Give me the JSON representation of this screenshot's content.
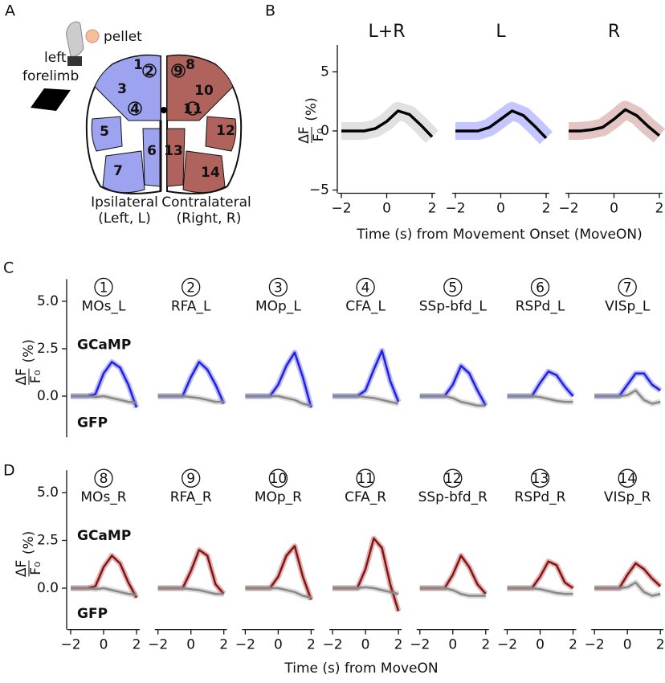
{
  "panel_labels": [
    "A",
    "B",
    "C",
    "D"
  ],
  "diagram": {
    "pellet": "pellet",
    "limb": [
      "left",
      "forelimb"
    ],
    "ipsi": [
      "Ipsilateral",
      "(Left, L)"
    ],
    "contra": [
      "Contralateral",
      "(Right, R)"
    ],
    "regions": [
      "1",
      "2",
      "3",
      "4",
      "5",
      "6",
      "7",
      "8",
      "9",
      "10",
      "11",
      "12",
      "13",
      "14"
    ]
  },
  "labels": {
    "b_xlabel": "Time (s) from Movement Onset (MoveON)",
    "d_xlabel": "Time (s) from MoveON",
    "ylabel_num": "ΔF",
    "ylabel_den": "F₀",
    "ylabel_unit": "(%)"
  },
  "chart_data": [
    {
      "type": "line",
      "title": "L+R",
      "x": [
        -2,
        -1.5,
        -1,
        -0.5,
        0,
        0.5,
        1,
        1.5,
        2
      ],
      "values": [
        0,
        0,
        0,
        0.2,
        0.8,
        1.7,
        1.4,
        0.5,
        -0.5
      ],
      "color": "#000000",
      "trace_color": "#aaaaaa",
      "xlim": [
        -2,
        2
      ],
      "ylim": [
        -5,
        7
      ],
      "xticks": [
        {
          "value": -2,
          "label": "−2"
        },
        0,
        2
      ],
      "yticks": [
        {
          "value": -5,
          "label": "−5"
        },
        0,
        5
      ]
    },
    {
      "type": "line",
      "title": "L",
      "x": [
        -2,
        -1.5,
        -1,
        -0.5,
        0,
        0.5,
        1,
        1.5,
        2
      ],
      "values": [
        0,
        0,
        0,
        0.3,
        1.0,
        1.7,
        1.3,
        0.4,
        -0.6
      ],
      "color": "#000000",
      "trace_color": "#5a5aff",
      "xlim": [
        -2,
        2
      ],
      "ylim": [
        -5,
        7
      ],
      "xticks": [
        {
          "value": -2,
          "label": "−2"
        },
        0,
        2
      ]
    },
    {
      "type": "line",
      "title": "R",
      "x": [
        -2,
        -1.5,
        -1,
        -0.5,
        0,
        0.5,
        1,
        1.5,
        2
      ],
      "values": [
        0,
        0,
        0.1,
        0.3,
        1.0,
        1.8,
        1.3,
        0.4,
        -0.4
      ],
      "color": "#000000",
      "trace_color": "#b05a55",
      "xlim": [
        -2,
        2
      ],
      "ylim": [
        -5,
        7
      ],
      "xticks": [
        {
          "value": -2,
          "label": "−2"
        },
        0,
        2
      ]
    },
    {
      "type": "line",
      "title_number": "1",
      "title": "MOs_L",
      "x": [
        -2,
        -1.5,
        -1,
        -0.5,
        0,
        0.5,
        1,
        1.5,
        2
      ],
      "xlim": [
        -2,
        2
      ],
      "ylim": [
        -2,
        6
      ],
      "yticks": [
        {
          "value": 0,
          "label": "0.0"
        },
        2.5,
        {
          "value": 5,
          "label": "5.0"
        }
      ],
      "series": [
        {
          "name": "GCaMP",
          "color": "#1f1fe8",
          "values": [
            0,
            0,
            0,
            0.1,
            1.2,
            1.8,
            1.5,
            0.6,
            -0.6
          ]
        },
        {
          "name": "GFP",
          "color": "#888888",
          "values": [
            0,
            0,
            0,
            -0.05,
            0,
            -0.1,
            -0.2,
            -0.3,
            -0.35
          ]
        }
      ]
    },
    {
      "type": "line",
      "title_number": "2",
      "title": "RFA_L",
      "x": [
        -2,
        -1.5,
        -1,
        -0.5,
        0,
        0.5,
        1,
        1.5,
        2
      ],
      "xlim": [
        -2,
        2
      ],
      "ylim": [
        -2,
        6
      ],
      "series": [
        {
          "color": "#1f1fe8",
          "values": [
            0,
            0,
            0,
            0,
            1.0,
            1.8,
            1.4,
            0.6,
            -0.4
          ]
        },
        {
          "color": "#888888",
          "values": [
            0,
            0,
            0,
            0,
            -0.05,
            -0.1,
            -0.2,
            -0.3,
            -0.3
          ]
        }
      ]
    },
    {
      "type": "line",
      "title_number": "3",
      "title": "MOp_L",
      "x": [
        -2,
        -1.5,
        -1,
        -0.5,
        0,
        0.5,
        1,
        1.5,
        2
      ],
      "xlim": [
        -2,
        2
      ],
      "ylim": [
        -2,
        6
      ],
      "series": [
        {
          "color": "#1f1fe8",
          "values": [
            0,
            0,
            0,
            0,
            0.6,
            1.6,
            2.3,
            1.0,
            -0.6
          ]
        },
        {
          "color": "#888888",
          "values": [
            0,
            0,
            0,
            0,
            0,
            -0.1,
            -0.2,
            -0.4,
            -0.5
          ]
        }
      ]
    },
    {
      "type": "line",
      "title_number": "4",
      "title": "CFA_L",
      "x": [
        -2,
        -1.5,
        -1,
        -0.5,
        0,
        0.5,
        1,
        1.5,
        2
      ],
      "xlim": [
        -2,
        2
      ],
      "ylim": [
        -2,
        6
      ],
      "series": [
        {
          "color": "#1f1fe8",
          "values": [
            0,
            0,
            0,
            0,
            0.3,
            1.4,
            2.4,
            0.8,
            -0.3
          ]
        },
        {
          "color": "#888888",
          "values": [
            0,
            0,
            0,
            0,
            -0.05,
            -0.1,
            -0.2,
            -0.3,
            -0.4
          ]
        }
      ]
    },
    {
      "type": "line",
      "title_number": "5",
      "title": "SSp-bfd_L",
      "x": [
        -2,
        -1.5,
        -1,
        -0.5,
        0,
        0.5,
        1,
        1.5,
        2
      ],
      "xlim": [
        -2,
        2
      ],
      "ylim": [
        -2,
        6
      ],
      "series": [
        {
          "color": "#1f1fe8",
          "values": [
            0,
            0,
            0,
            0,
            0.6,
            1.6,
            1.2,
            0.3,
            -0.5
          ]
        },
        {
          "color": "#888888",
          "values": [
            0,
            0,
            0,
            0,
            -0.1,
            -0.3,
            -0.4,
            -0.5,
            -0.5
          ]
        }
      ]
    },
    {
      "type": "line",
      "title_number": "6",
      "title": "RSPd_L",
      "x": [
        -2,
        -1.5,
        -1,
        -0.5,
        0,
        0.5,
        1,
        1.5,
        2
      ],
      "xlim": [
        -2,
        2
      ],
      "ylim": [
        -2,
        6
      ],
      "series": [
        {
          "color": "#1f1fe8",
          "values": [
            0,
            0,
            0,
            0,
            0.7,
            1.3,
            1.1,
            0.5,
            0
          ]
        },
        {
          "color": "#888888",
          "values": [
            0,
            0,
            0,
            0,
            -0.05,
            -0.15,
            -0.25,
            -0.3,
            -0.3
          ]
        }
      ]
    },
    {
      "type": "line",
      "title_number": "7",
      "title": "VISp_L",
      "x": [
        -2,
        -1.5,
        -1,
        -0.5,
        0,
        0.5,
        1,
        1.5,
        2
      ],
      "xlim": [
        -2,
        2
      ],
      "ylim": [
        -2,
        6
      ],
      "series": [
        {
          "color": "#1f1fe8",
          "values": [
            0,
            0,
            0,
            0,
            0.6,
            1.2,
            1.2,
            0.6,
            0.3
          ]
        },
        {
          "color": "#888888",
          "values": [
            0,
            0,
            0,
            0,
            0.05,
            0.3,
            -0.2,
            -0.4,
            -0.3
          ]
        }
      ]
    },
    {
      "type": "line",
      "title_number": "8",
      "title": "MOs_R",
      "x": [
        -2,
        -1.5,
        -1,
        -0.5,
        0,
        0.5,
        1,
        1.5,
        2
      ],
      "xlim": [
        -2,
        2
      ],
      "ylim": [
        -2,
        6
      ],
      "xticks": [
        {
          "value": -2,
          "label": "−2"
        },
        0,
        2
      ],
      "yticks": [
        {
          "value": 0,
          "label": "0.0"
        },
        2.5,
        {
          "value": 5,
          "label": "5.0"
        }
      ],
      "series": [
        {
          "name": "GCaMP",
          "color": "#8b1010",
          "values": [
            0,
            0,
            0,
            0.1,
            1.1,
            1.7,
            1.3,
            0.3,
            -0.5
          ]
        },
        {
          "name": "GFP",
          "color": "#888888",
          "values": [
            0,
            0,
            0,
            -0.05,
            0,
            -0.1,
            -0.2,
            -0.3,
            -0.35
          ]
        }
      ]
    },
    {
      "type": "line",
      "title_number": "9",
      "title": "RFA_R",
      "x": [
        -2,
        -1.5,
        -1,
        -0.5,
        0,
        0.5,
        1,
        1.5,
        2
      ],
      "xlim": [
        -2,
        2
      ],
      "ylim": [
        -2,
        6
      ],
      "xticks": [
        {
          "value": -2,
          "label": "−2"
        },
        0,
        2
      ],
      "series": [
        {
          "color": "#8b1010",
          "values": [
            0,
            0,
            0,
            0,
            0.9,
            2.0,
            1.7,
            0.2,
            -0.3
          ]
        },
        {
          "color": "#888888",
          "values": [
            0,
            0,
            0,
            0,
            -0.05,
            -0.1,
            -0.2,
            -0.3,
            -0.3
          ]
        }
      ]
    },
    {
      "type": "line",
      "title_number": "10",
      "title": "MOp_R",
      "x": [
        -2,
        -1.5,
        -1,
        -0.5,
        0,
        0.5,
        1,
        1.5,
        2
      ],
      "xlim": [
        -2,
        2
      ],
      "ylim": [
        -2,
        6
      ],
      "xticks": [
        {
          "value": -2,
          "label": "−2"
        },
        0,
        2
      ],
      "series": [
        {
          "color": "#8b1010",
          "values": [
            0,
            0,
            0,
            0,
            0.6,
            1.7,
            2.2,
            0.6,
            -0.6
          ]
        },
        {
          "color": "#888888",
          "values": [
            0,
            0,
            0,
            0,
            0,
            -0.1,
            -0.2,
            -0.4,
            -0.5
          ]
        }
      ]
    },
    {
      "type": "line",
      "title_number": "11",
      "title": "CFA_R",
      "x": [
        -2,
        -1.5,
        -1,
        -0.5,
        0,
        0.5,
        1,
        1.5,
        2
      ],
      "xlim": [
        -2,
        2
      ],
      "ylim": [
        -2,
        6
      ],
      "xticks": [
        {
          "value": -2,
          "label": "−2"
        },
        0,
        2
      ],
      "series": [
        {
          "color": "#8b1010",
          "values": [
            0,
            0,
            0,
            0,
            1.0,
            2.6,
            2.1,
            0.2,
            -1.2
          ]
        },
        {
          "color": "#888888",
          "values": [
            0,
            0,
            0,
            0,
            0.05,
            0,
            -0.1,
            -0.2,
            -0.3
          ]
        }
      ]
    },
    {
      "type": "line",
      "title_number": "12",
      "title": "SSp-bfd_R",
      "x": [
        -2,
        -1.5,
        -1,
        -0.5,
        0,
        0.5,
        1,
        1.5,
        2
      ],
      "xlim": [
        -2,
        2
      ],
      "ylim": [
        -2,
        6
      ],
      "xticks": [
        {
          "value": -2,
          "label": "−2"
        },
        0,
        2
      ],
      "series": [
        {
          "color": "#8b1010",
          "values": [
            0,
            0,
            0,
            0,
            0.7,
            1.7,
            1.1,
            0.2,
            -0.3
          ]
        },
        {
          "color": "#888888",
          "values": [
            0,
            0,
            0,
            0,
            -0.1,
            -0.3,
            -0.4,
            -0.4,
            -0.4
          ]
        }
      ]
    },
    {
      "type": "line",
      "title_number": "13",
      "title": "RSPd_R",
      "x": [
        -2,
        -1.5,
        -1,
        -0.5,
        0,
        0.5,
        1,
        1.5,
        2
      ],
      "xlim": [
        -2,
        2
      ],
      "ylim": [
        -2,
        6
      ],
      "xticks": [
        {
          "value": -2,
          "label": "−2"
        },
        0,
        2
      ],
      "series": [
        {
          "color": "#8b1010",
          "values": [
            0,
            0,
            0,
            0,
            0.6,
            1.4,
            1.2,
            0.3,
            0
          ]
        },
        {
          "color": "#888888",
          "values": [
            0,
            0,
            0,
            0,
            -0.05,
            -0.15,
            -0.25,
            -0.3,
            -0.3
          ]
        }
      ]
    },
    {
      "type": "line",
      "title_number": "14",
      "title": "VISp_R",
      "x": [
        -2,
        -1.5,
        -1,
        -0.5,
        0,
        0.5,
        1,
        1.5,
        2
      ],
      "xlim": [
        -2,
        2
      ],
      "ylim": [
        -2,
        6
      ],
      "xticks": [
        {
          "value": -2,
          "label": "−2"
        },
        0,
        2
      ],
      "series": [
        {
          "color": "#8b1010",
          "values": [
            0,
            0,
            0,
            0,
            0.7,
            1.3,
            1.0,
            0.5,
            0.1
          ]
        },
        {
          "color": "#888888",
          "values": [
            0,
            0,
            0,
            0,
            0.05,
            0.3,
            -0.2,
            -0.4,
            -0.3
          ]
        }
      ]
    }
  ]
}
